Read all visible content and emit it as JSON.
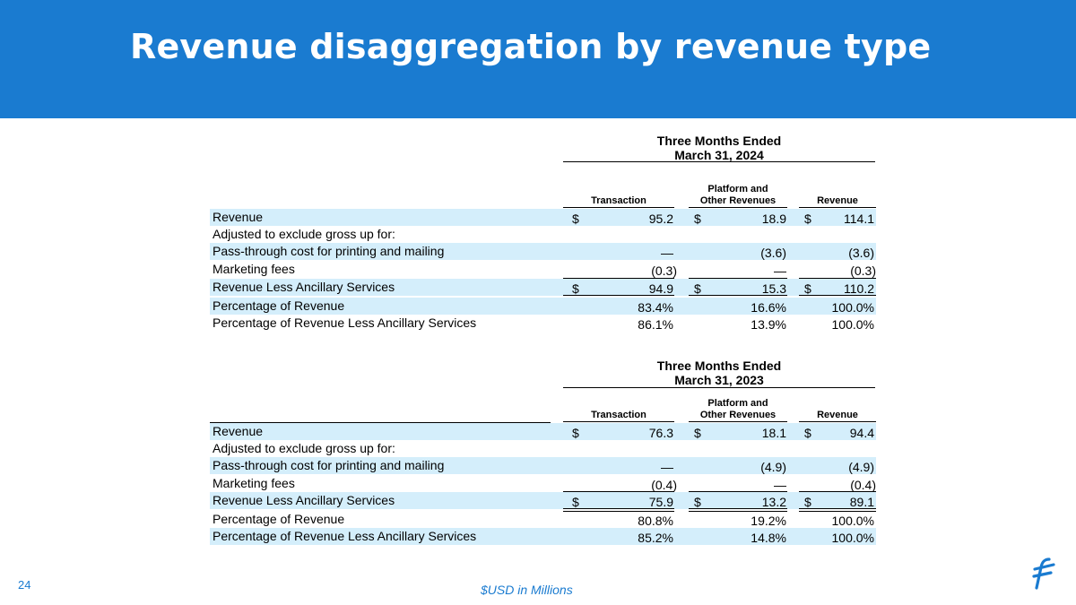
{
  "title": "Revenue disaggregation by revenue type",
  "page_number": "24",
  "footnote": "$USD in Millions",
  "colors": {
    "header_bg": "#1a7bd0",
    "row_highlight": "#d4eefb",
    "accent": "#1a7bd0"
  },
  "columns": [
    "Transaction",
    "Platform and",
    "Other Revenues",
    "Revenue"
  ],
  "table_2024": {
    "period_line1": "Three Months Ended",
    "period_line2": "March 31, 2024",
    "rows": [
      {
        "label": "Revenue",
        "c1": "95.2",
        "c2": "18.9",
        "c3": "114.1",
        "d1": "$",
        "d2": "$",
        "d3": "$"
      },
      {
        "label": "Adjusted to exclude gross up for:"
      },
      {
        "label": "Pass-through cost for printing and mailing",
        "c1": "—",
        "c2": "(3.6)",
        "c3": "(3.6)"
      },
      {
        "label": "Marketing fees",
        "c1": "(0.3)",
        "c2": "—",
        "c3": "(0.3)"
      },
      {
        "label": "Revenue Less Ancillary Services",
        "c1": "94.9",
        "c2": "15.3",
        "c3": "110.2",
        "d1": "$",
        "d2": "$",
        "d3": "$"
      },
      {
        "label": "Percentage of Revenue",
        "c1": "83.4%",
        "c2": "16.6%",
        "c3": "100.0%"
      },
      {
        "label": "Percentage of Revenue Less Ancillary Services",
        "c1": "86.1%",
        "c2": "13.9%",
        "c3": "100.0%"
      }
    ]
  },
  "table_2023": {
    "period_line1": "Three Months Ended",
    "period_line2": "March 31, 2023",
    "rows": [
      {
        "label": "Revenue",
        "c1": "76.3",
        "c2": "18.1",
        "c3": "94.4",
        "d1": "$",
        "d2": "$",
        "d3": "$"
      },
      {
        "label": "Adjusted to exclude gross up for:"
      },
      {
        "label": "Pass-through cost for printing and mailing",
        "c1": "—",
        "c2": "(4.9)",
        "c3": "(4.9)"
      },
      {
        "label": "Marketing fees",
        "c1": "(0.4)",
        "c2": "—",
        "c3": "(0.4)"
      },
      {
        "label": "Revenue Less Ancillary Services",
        "c1": "75.9",
        "c2": "13.2",
        "c3": "89.1",
        "d1": "$",
        "d2": "$",
        "d3": "$"
      },
      {
        "label": "Percentage of Revenue",
        "c1": "80.8%",
        "c2": "19.2%",
        "c3": "100.0%"
      },
      {
        "label": "Percentage of Revenue Less Ancillary Services",
        "c1": "85.2%",
        "c2": "14.8%",
        "c3": "100.0%"
      }
    ]
  }
}
